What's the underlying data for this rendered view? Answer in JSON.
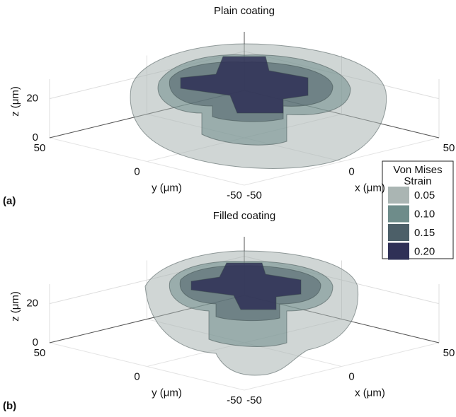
{
  "chart_data": [
    {
      "type": "isosurface",
      "title": "Plain coating",
      "panel": "(a)",
      "xlabel": "x (μm)",
      "ylabel": "y (μm)",
      "zlabel": "z (μm)",
      "xlim": [
        -50,
        50
      ],
      "ylim": [
        -50,
        50
      ],
      "zlim": [
        0,
        30
      ],
      "xticks": [
        -50,
        0,
        50
      ],
      "yticks": [
        -50,
        0,
        50
      ],
      "zticks": [
        0,
        20
      ],
      "grid": true
    },
    {
      "type": "isosurface",
      "title": "Filled coating",
      "panel": "(b)",
      "xlabel": "x (μm)",
      "ylabel": "y (μm)",
      "zlabel": "z (μm)",
      "xlim": [
        -50,
        50
      ],
      "ylim": [
        -50,
        50
      ],
      "zlim": [
        0,
        30
      ],
      "xticks": [
        -50,
        0,
        50
      ],
      "yticks": [
        -50,
        0,
        50
      ],
      "zticks": [
        0,
        20
      ],
      "grid": true
    }
  ],
  "legend": {
    "title": [
      "Von Mises",
      "Strain"
    ],
    "levels": [
      0.05,
      {
        "value": 0.1,
        "label": "0.10"
      },
      0.15,
      {
        "value": 0.2,
        "label": "0.20"
      }
    ],
    "colors": [
      "#aab5b3",
      "#6e8c8a",
      "#4c5f68",
      "#2f3056"
    ]
  }
}
